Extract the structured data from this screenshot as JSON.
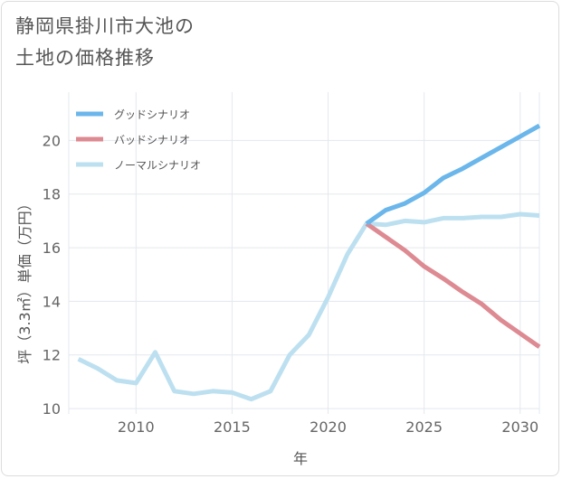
{
  "title_line1": "静岡県掛川市大池の",
  "title_line2": "土地の価格推移",
  "chart_data": {
    "type": "line",
    "title": "静岡県掛川市大池の土地の価格推移",
    "xlabel": "年",
    "ylabel": "坪（3.3㎡）単価（万円）",
    "xlim": [
      2006.5,
      2031
    ],
    "ylim": [
      9.8,
      21.8
    ],
    "xticks": [
      2010,
      2015,
      2020,
      2025,
      2030
    ],
    "yticks": [
      10,
      12,
      14,
      16,
      18,
      20
    ],
    "grid": true,
    "legend_position": "top-left",
    "series": [
      {
        "name": "グッドシナリオ",
        "color": "#6bb6ea",
        "x": [
          2022,
          2023,
          2024,
          2025,
          2026,
          2027,
          2028,
          2029,
          2030,
          2031
        ],
        "values": [
          16.9,
          17.4,
          17.65,
          18.05,
          18.6,
          18.95,
          19.35,
          19.75,
          20.15,
          20.55
        ]
      },
      {
        "name": "バッドシナリオ",
        "color": "#dd8a92",
        "x": [
          2022,
          2023,
          2024,
          2025,
          2026,
          2027,
          2028,
          2029,
          2030,
          2031
        ],
        "values": [
          16.9,
          16.4,
          15.9,
          15.3,
          14.85,
          14.35,
          13.9,
          13.3,
          12.8,
          12.3
        ]
      },
      {
        "name": "ノーマルシナリオ",
        "color": "#bde0f0",
        "x": [
          2007,
          2008,
          2009,
          2010,
          2011,
          2012,
          2013,
          2014,
          2015,
          2016,
          2017,
          2018,
          2019,
          2020,
          2021,
          2022,
          2023,
          2024,
          2025,
          2026,
          2027,
          2028,
          2029,
          2030,
          2031
        ],
        "values": [
          11.85,
          11.5,
          11.05,
          10.95,
          12.1,
          10.65,
          10.55,
          10.65,
          10.6,
          10.35,
          10.65,
          12.0,
          12.75,
          14.15,
          15.75,
          16.9,
          16.85,
          17.0,
          16.95,
          17.1,
          17.1,
          17.15,
          17.15,
          17.25,
          17.2
        ]
      }
    ]
  }
}
